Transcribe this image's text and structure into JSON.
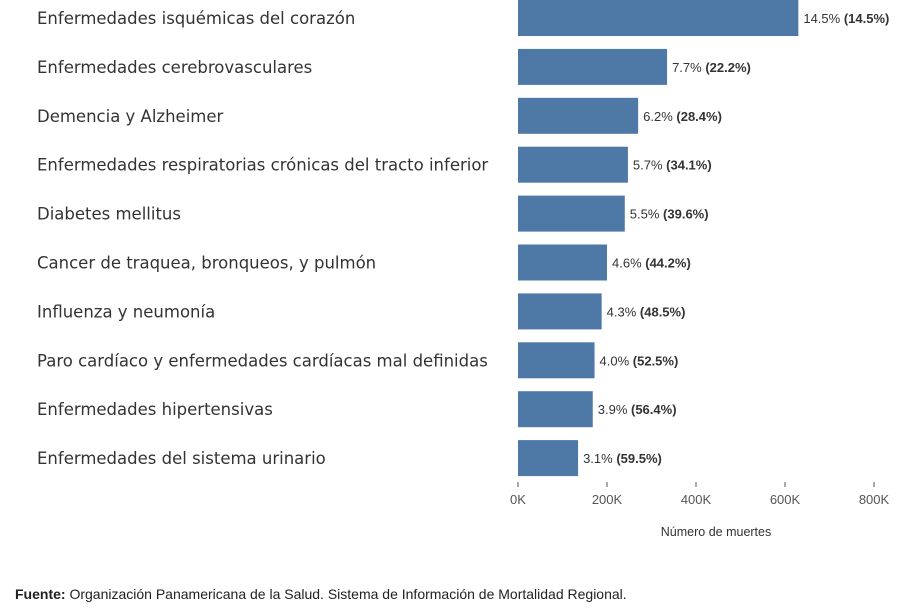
{
  "chart_data": {
    "type": "bar",
    "orientation": "horizontal",
    "categories": [
      "Enfermedades isquémicas del corazón",
      "Enfermedades cerebrovasculares",
      "Demencia y Alzheimer",
      "Enfermedades respiratorias crónicas del tracto inferior",
      "Diabetes mellitus",
      "Cancer de traquea, bronqueos, y pulmón",
      "Influenza y neumonía",
      "Paro cardíaco y enfermedades cardíacas mal definidas",
      "Enfermedades hipertensivas",
      "Enfermedades del sistema urinario"
    ],
    "values": [
      630000,
      335000,
      270000,
      247000,
      240000,
      200000,
      188000,
      172000,
      168000,
      135000
    ],
    "percent_labels": [
      "14.5%",
      "7.7%",
      "6.2%",
      "5.7%",
      "5.5%",
      "4.6%",
      "4.3%",
      "4.0%",
      "3.9%",
      "3.1%"
    ],
    "cumulative_labels": [
      "(14.5%)",
      "(22.2%)",
      "(28.4%)",
      "(34.1%)",
      "(39.6%)",
      "(44.2%)",
      "(48.5%)",
      "(52.5%)",
      "(56.4%)",
      "(59.5%)"
    ],
    "xlim": [
      0,
      800000
    ],
    "x_ticks": [
      0,
      200000,
      400000,
      600000,
      800000
    ],
    "x_tick_labels": [
      "0K",
      "200K",
      "400K",
      "600K",
      "800K"
    ],
    "xlabel": "Número de muertes",
    "colors": {
      "bar": "#4e79a7"
    },
    "grid": false
  },
  "source": {
    "label": "Fuente:",
    "text": " Organización Panamericana de la Salud. Sistema de Información de Mortalidad Regional."
  }
}
